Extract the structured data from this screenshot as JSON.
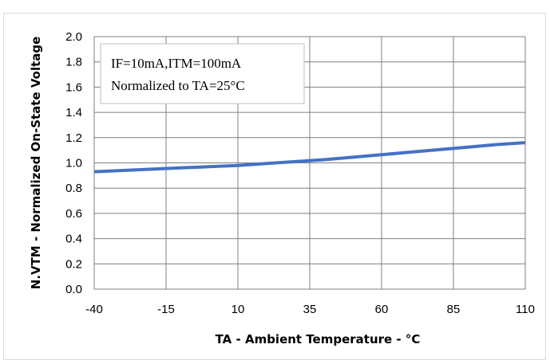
{
  "chart_data": {
    "type": "line",
    "title": "",
    "xlabel": "TA - Ambient Temperature - °C",
    "ylabel": "N.VTM - Normalized On-State Voltage",
    "xlim": [
      -40,
      110
    ],
    "ylim": [
      0.0,
      2.0
    ],
    "x_ticks": [
      "-40",
      "-15",
      "10",
      "35",
      "60",
      "85",
      "110"
    ],
    "y_ticks": [
      "0.0",
      "0.2",
      "0.4",
      "0.6",
      "0.8",
      "1.0",
      "1.2",
      "1.4",
      "1.6",
      "1.8",
      "2.0"
    ],
    "grid": true,
    "series_color": "#4472c4",
    "annotation": [
      "IF=10mA,ITM=100mA",
      "Normalized to TA=25°C"
    ],
    "series": [
      {
        "x": [
          -40,
          -30,
          -20,
          -10,
          0,
          10,
          20,
          30,
          40,
          50,
          60,
          70,
          80,
          90,
          100,
          110
        ],
        "y": [
          0.93,
          0.94,
          0.95,
          0.96,
          0.97,
          0.98,
          0.995,
          1.01,
          1.025,
          1.045,
          1.065,
          1.085,
          1.105,
          1.125,
          1.145,
          1.16
        ]
      }
    ]
  }
}
